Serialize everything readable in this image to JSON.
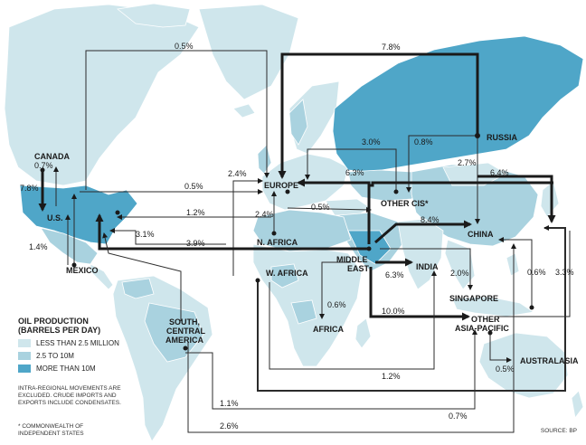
{
  "colors": {
    "ocean": "#ffffff",
    "low": "#cfe6ec",
    "mid": "#a9d2df",
    "high": "#4fa6c8",
    "flow": "#1a1a1a"
  },
  "regions": {
    "canada": "CANADA",
    "us": "U.S.",
    "mexico": "MEXICO",
    "europe": "EUROPE",
    "n_africa": "N. AFRICA",
    "w_africa": "W. AFRICA",
    "africa": "AFRICA",
    "south_central_america": [
      "SOUTH,",
      "CENTRAL",
      "AMERICA"
    ],
    "russia": "RUSSIA",
    "other_cis": "OTHER CIS*",
    "china": "CHINA",
    "middle_east": [
      "MIDDLE",
      "EAST"
    ],
    "india": "INDIA",
    "singapore": "SINGAPORE",
    "other_asia_pacific": [
      "OTHER",
      "ASIA-PACIFIC"
    ],
    "australasia": "AUSTRALASIA"
  },
  "flows": {
    "f_0_5_top": "0.5%",
    "f_7_8_top": "7.8%",
    "f_0_7_canada": "0.7%",
    "f_7_8_us": "7.8%",
    "f_0_5_us_eu": "0.5%",
    "f_2_4_top": "2.4%",
    "f_2_4_nafrica": "2.4%",
    "f_0_5_mid": "0.5%",
    "f_1_2": "1.2%",
    "f_3_1": "3.1%",
    "f_3_9": "3.9%",
    "f_1_4": "1.4%",
    "f_3_0": "3.0%",
    "f_0_8": "0.8%",
    "f_2_7": "2.7%",
    "f_6_3": "6.3%",
    "f_6_4": "6.4%",
    "f_8_4": "8.4%",
    "f_6_3_india": "6.3%",
    "f_2_0": "2.0%",
    "f_0_6_africa": "0.6%",
    "f_10_0": "10.0%",
    "f_0_6_asia": "0.6%",
    "f_3_3": "3.3%",
    "f_0_5_aus": "0.5%",
    "f_1_2_bottom": "1.2%",
    "f_1_1": "1.1%",
    "f_0_7_bottom": "0.7%",
    "f_2_6": "2.6%"
  },
  "legend": {
    "title_line1": "OIL PRODUCTION",
    "title_line2": "(BARRELS PER DAY)",
    "items": [
      {
        "label": "LESS THAN 2.5 MILLION",
        "color": "#cfe6ec"
      },
      {
        "label": "2.5 TO 10M",
        "color": "#a9d2df"
      },
      {
        "label": "MORE THAN 10M",
        "color": "#4fa6c8"
      }
    ]
  },
  "notes": {
    "intra_regional": "INTRA-REGIONAL MOVEMENTS ARE EXCLUDED. CRUDE IMPORTS AND EXPORTS INCLUDE CONDENSATES.",
    "cis": "* COMMONWEALTH OF INDEPENDENT STATES",
    "source": "SOURCE: BP"
  }
}
